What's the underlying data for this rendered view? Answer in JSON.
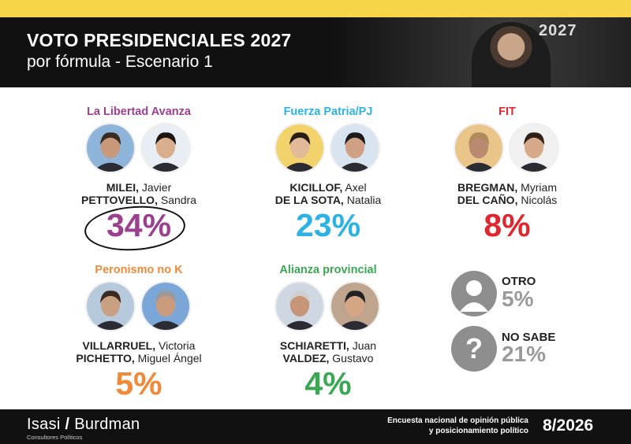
{
  "header": {
    "title": "VOTO PRESIDENCIALES 2027",
    "subtitle": "por fórmula - Escenario 1",
    "photo_year": "2027"
  },
  "colors": {
    "accent_yellow": "#f7d54a",
    "lla": "#9b3f8f",
    "fp": "#2bb3e6",
    "fit": "#e0262e",
    "pnk": "#f08a38",
    "ap": "#3aa853",
    "gray": "#9a9a9a"
  },
  "chart_data": {
    "type": "table",
    "series": [
      {
        "party": "La Libertad Avanza",
        "candidates": [
          {
            "surname": "MILEI,",
            "name": "Javier"
          },
          {
            "surname": "PETTOVELLO,",
            "name": "Sandra"
          }
        ],
        "value": 34,
        "label": "34%"
      },
      {
        "party": "Fuerza Patria/PJ",
        "candidates": [
          {
            "surname": "KICILLOF,",
            "name": "Axel"
          },
          {
            "surname": "DE LA SOTA,",
            "name": "Natalia"
          }
        ],
        "value": 23,
        "label": "23%"
      },
      {
        "party": "FIT",
        "candidates": [
          {
            "surname": "BREGMAN,",
            "name": "Myriam"
          },
          {
            "surname": "DEL CAÑO,",
            "name": "Nicolás"
          }
        ],
        "value": 8,
        "label": "8%"
      },
      {
        "party": "Peronismo no K",
        "candidates": [
          {
            "surname": "VILLARRUEL,",
            "name": "Victoria"
          },
          {
            "surname": "PICHETTO,",
            "name": "Miguel Ángel"
          }
        ],
        "value": 5,
        "label": "5%"
      },
      {
        "party": "Alianza provincial",
        "candidates": [
          {
            "surname": "SCHIARETTI,",
            "name": "Juan"
          },
          {
            "surname": "VALDEZ,",
            "name": "Gustavo"
          }
        ],
        "value": 4,
        "label": "4%"
      }
    ],
    "others": [
      {
        "label": "OTRO",
        "value": 5,
        "pct": "5%",
        "icon": "person-icon"
      },
      {
        "label": "NO SABE",
        "value": 21,
        "pct": "21%",
        "icon": "question-icon"
      }
    ]
  },
  "footer": {
    "brand_left": "Isasi",
    "brand_sep": "/",
    "brand_right": "Burdman",
    "brand_sub": "Consultores Políticos",
    "survey_line1": "Encuesta nacional de opinión pública",
    "survey_line2": "y posicionamiento político",
    "date": "8/2026"
  }
}
